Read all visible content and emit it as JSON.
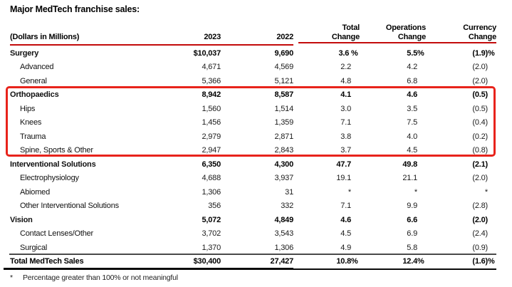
{
  "title": "Major MedTech franchise sales:",
  "accent": {
    "header_rule_color": "#c30b0b",
    "highlight_box_color": "#e8231b"
  },
  "table": {
    "header": {
      "label": "(Dollars in Millions)",
      "col_2023": "2023",
      "col_2022": "2022",
      "total_change": "Total\nChange",
      "operations_change": "Operations\nChange",
      "currency_change": "Currency\nChange"
    },
    "rows": [
      {
        "label": "Surgery",
        "level": "section",
        "v2023": "$10,037",
        "v2022": "9,690",
        "total": "3.6 %",
        "ops": "5.5%",
        "currency": "(1.9)%"
      },
      {
        "label": "Advanced",
        "level": "detail",
        "v2023": "4,671",
        "v2022": "4,569",
        "total": "2.2",
        "ops": "4.2",
        "currency": "(2.0)"
      },
      {
        "label": "General",
        "level": "detail",
        "v2023": "5,366",
        "v2022": "5,121",
        "total": "4.8",
        "ops": "6.8",
        "currency": "(2.0)"
      },
      {
        "label": "Orthopaedics",
        "level": "section",
        "v2023": "8,942",
        "v2022": "8,587",
        "total": "4.1",
        "ops": "4.6",
        "currency": "(0.5)"
      },
      {
        "label": "Hips",
        "level": "detail",
        "v2023": "1,560",
        "v2022": "1,514",
        "total": "3.0",
        "ops": "3.5",
        "currency": "(0.5)"
      },
      {
        "label": "Knees",
        "level": "detail",
        "v2023": "1,456",
        "v2022": "1,359",
        "total": "7.1",
        "ops": "7.5",
        "currency": "(0.4)"
      },
      {
        "label": "Trauma",
        "level": "detail",
        "v2023": "2,979",
        "v2022": "2,871",
        "total": "3.8",
        "ops": "4.0",
        "currency": "(0.2)"
      },
      {
        "label": "Spine, Sports & Other",
        "level": "detail",
        "v2023": "2,947",
        "v2022": "2,843",
        "total": "3.7",
        "ops": "4.5",
        "currency": "(0.8)"
      },
      {
        "label": "Interventional Solutions",
        "level": "section",
        "v2023": "6,350",
        "v2022": "4,300",
        "total": "47.7",
        "ops": "49.8",
        "currency": "(2.1)"
      },
      {
        "label": "Electrophysiology",
        "level": "detail",
        "v2023": "4,688",
        "v2022": "3,937",
        "total": "19.1",
        "ops": "21.1",
        "currency": "(2.0)"
      },
      {
        "label": "Abiomed",
        "level": "detail",
        "v2023": "1,306",
        "v2022": "31",
        "total": "*",
        "ops": "*",
        "currency": "*"
      },
      {
        "label": "Other Interventional Solutions",
        "level": "detail",
        "v2023": "356",
        "v2022": "332",
        "total": "7.1",
        "ops": "9.9",
        "currency": "(2.8)"
      },
      {
        "label": "Vision",
        "level": "section",
        "v2023": "5,072",
        "v2022": "4,849",
        "total": "4.6",
        "ops": "6.6",
        "currency": "(2.0)"
      },
      {
        "label": "Contact Lenses/Other",
        "level": "detail",
        "v2023": "3,702",
        "v2022": "3,543",
        "total": "4.5",
        "ops": "6.9",
        "currency": "(2.4)"
      },
      {
        "label": "Surgical",
        "level": "detail",
        "v2023": "1,370",
        "v2022": "1,306",
        "total": "4.9",
        "ops": "5.8",
        "currency": "(0.9)"
      }
    ],
    "total_row": {
      "label": "Total MedTech Sales",
      "v2023": "$30,400",
      "v2022": "27,427",
      "total": "10.8%",
      "ops": "12.4%",
      "currency": "(1.6)%"
    },
    "highlighted_section": "Orthopaedics"
  },
  "footnote": {
    "marker": "*",
    "text": "Percentage greater than 100% or not meaningful"
  }
}
